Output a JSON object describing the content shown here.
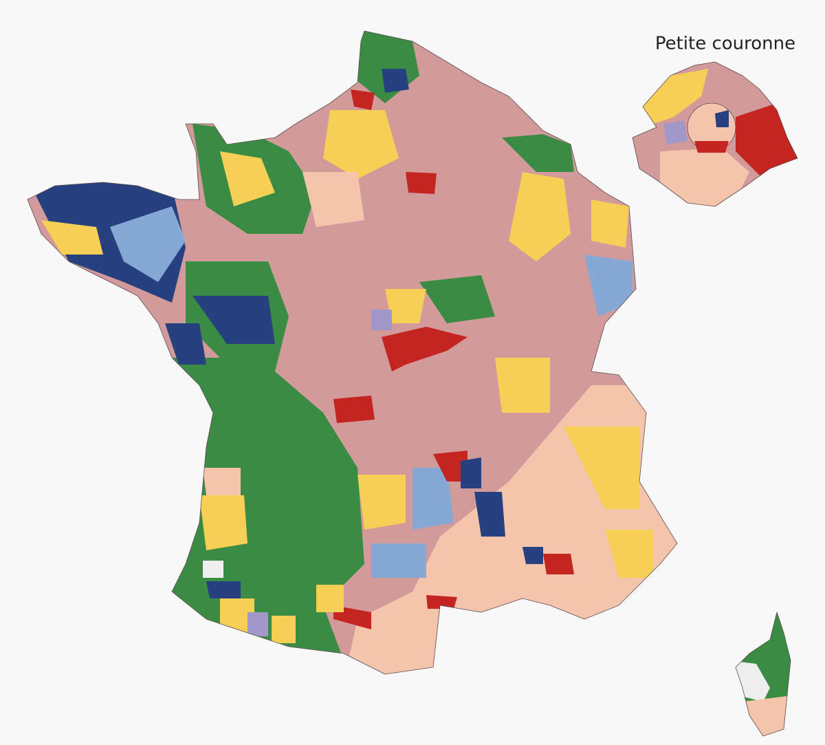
{
  "inset": {
    "title": "Petite couronne"
  }
}
